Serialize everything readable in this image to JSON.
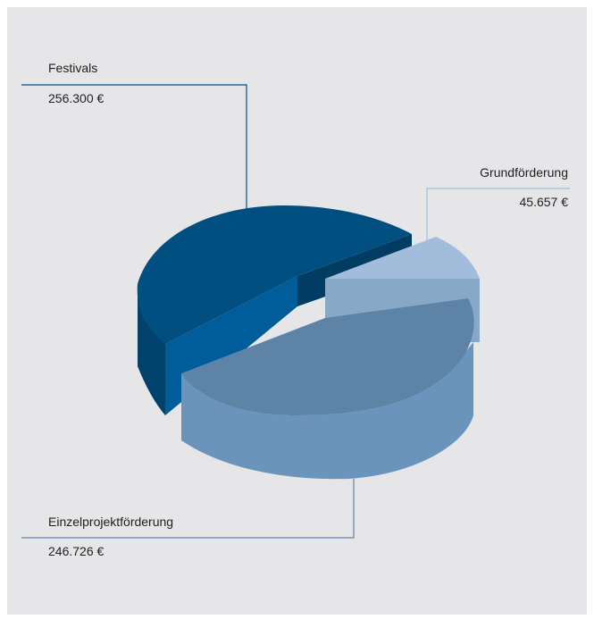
{
  "chart_data": {
    "type": "pie",
    "title": "",
    "unit": "€",
    "slices": [
      {
        "name": "Festivals",
        "value": 256300,
        "label": "256.300 €",
        "color": "#014f80"
      },
      {
        "name": "Grundförderung",
        "value": 45657,
        "label": "45.657 €",
        "color": "#a2bddb"
      },
      {
        "name": "Einzelprojektförderung",
        "value": 246726,
        "label": "246.726 €",
        "color": "#5d84a7"
      }
    ],
    "legend": "none",
    "style": "3d exploded"
  }
}
